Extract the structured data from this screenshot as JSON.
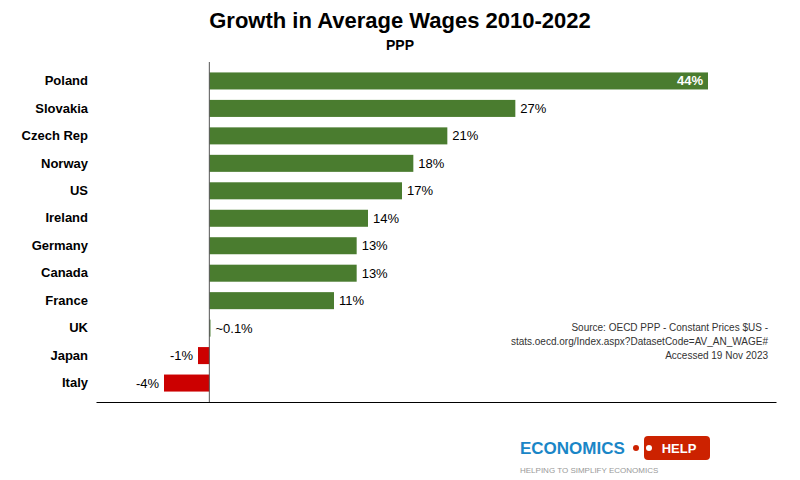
{
  "chart_data": {
    "type": "bar",
    "orientation": "horizontal",
    "title": "Growth in Average Wages 2010-2022",
    "subtitle": "PPP",
    "categories": [
      "Italy",
      "Japan",
      "UK",
      "France",
      "Canada",
      "Germany",
      "Ireland",
      "US",
      "Norway",
      "Czech Rep",
      "Slovakia",
      "Poland"
    ],
    "values": [
      -4,
      -1,
      0.1,
      11,
      13,
      13,
      14,
      17,
      18,
      21,
      27,
      44
    ],
    "value_labels": [
      "-4%",
      "-1%",
      "~0.1%",
      "11%",
      "13%",
      "13%",
      "14%",
      "17%",
      "18%",
      "21%",
      "27%",
      "44%"
    ],
    "colors": [
      "#cc0000",
      "#cc0000",
      "#4a7c2f",
      "#4a7c2f",
      "#4a7c2f",
      "#4a7c2f",
      "#4a7c2f",
      "#4a7c2f",
      "#4a7c2f",
      "#4a7c2f",
      "#4a7c2f",
      "#4a7c2f"
    ],
    "xlim": [
      -10,
      50
    ],
    "xticks": [],
    "grid": false,
    "data_labels": true,
    "tick_labels": "y",
    "annotations": [
      "Source: OECD PPP - Constant Prices $US -\nstats.oecd.org/Index.aspx?DatasetCode=AV_AN_WAGE#\nAccessed 19 Nov 2023",
      "ECONOMICS",
      "HELP",
      "HELPING TO SIMPLIFY ECONOMICS"
    ]
  }
}
